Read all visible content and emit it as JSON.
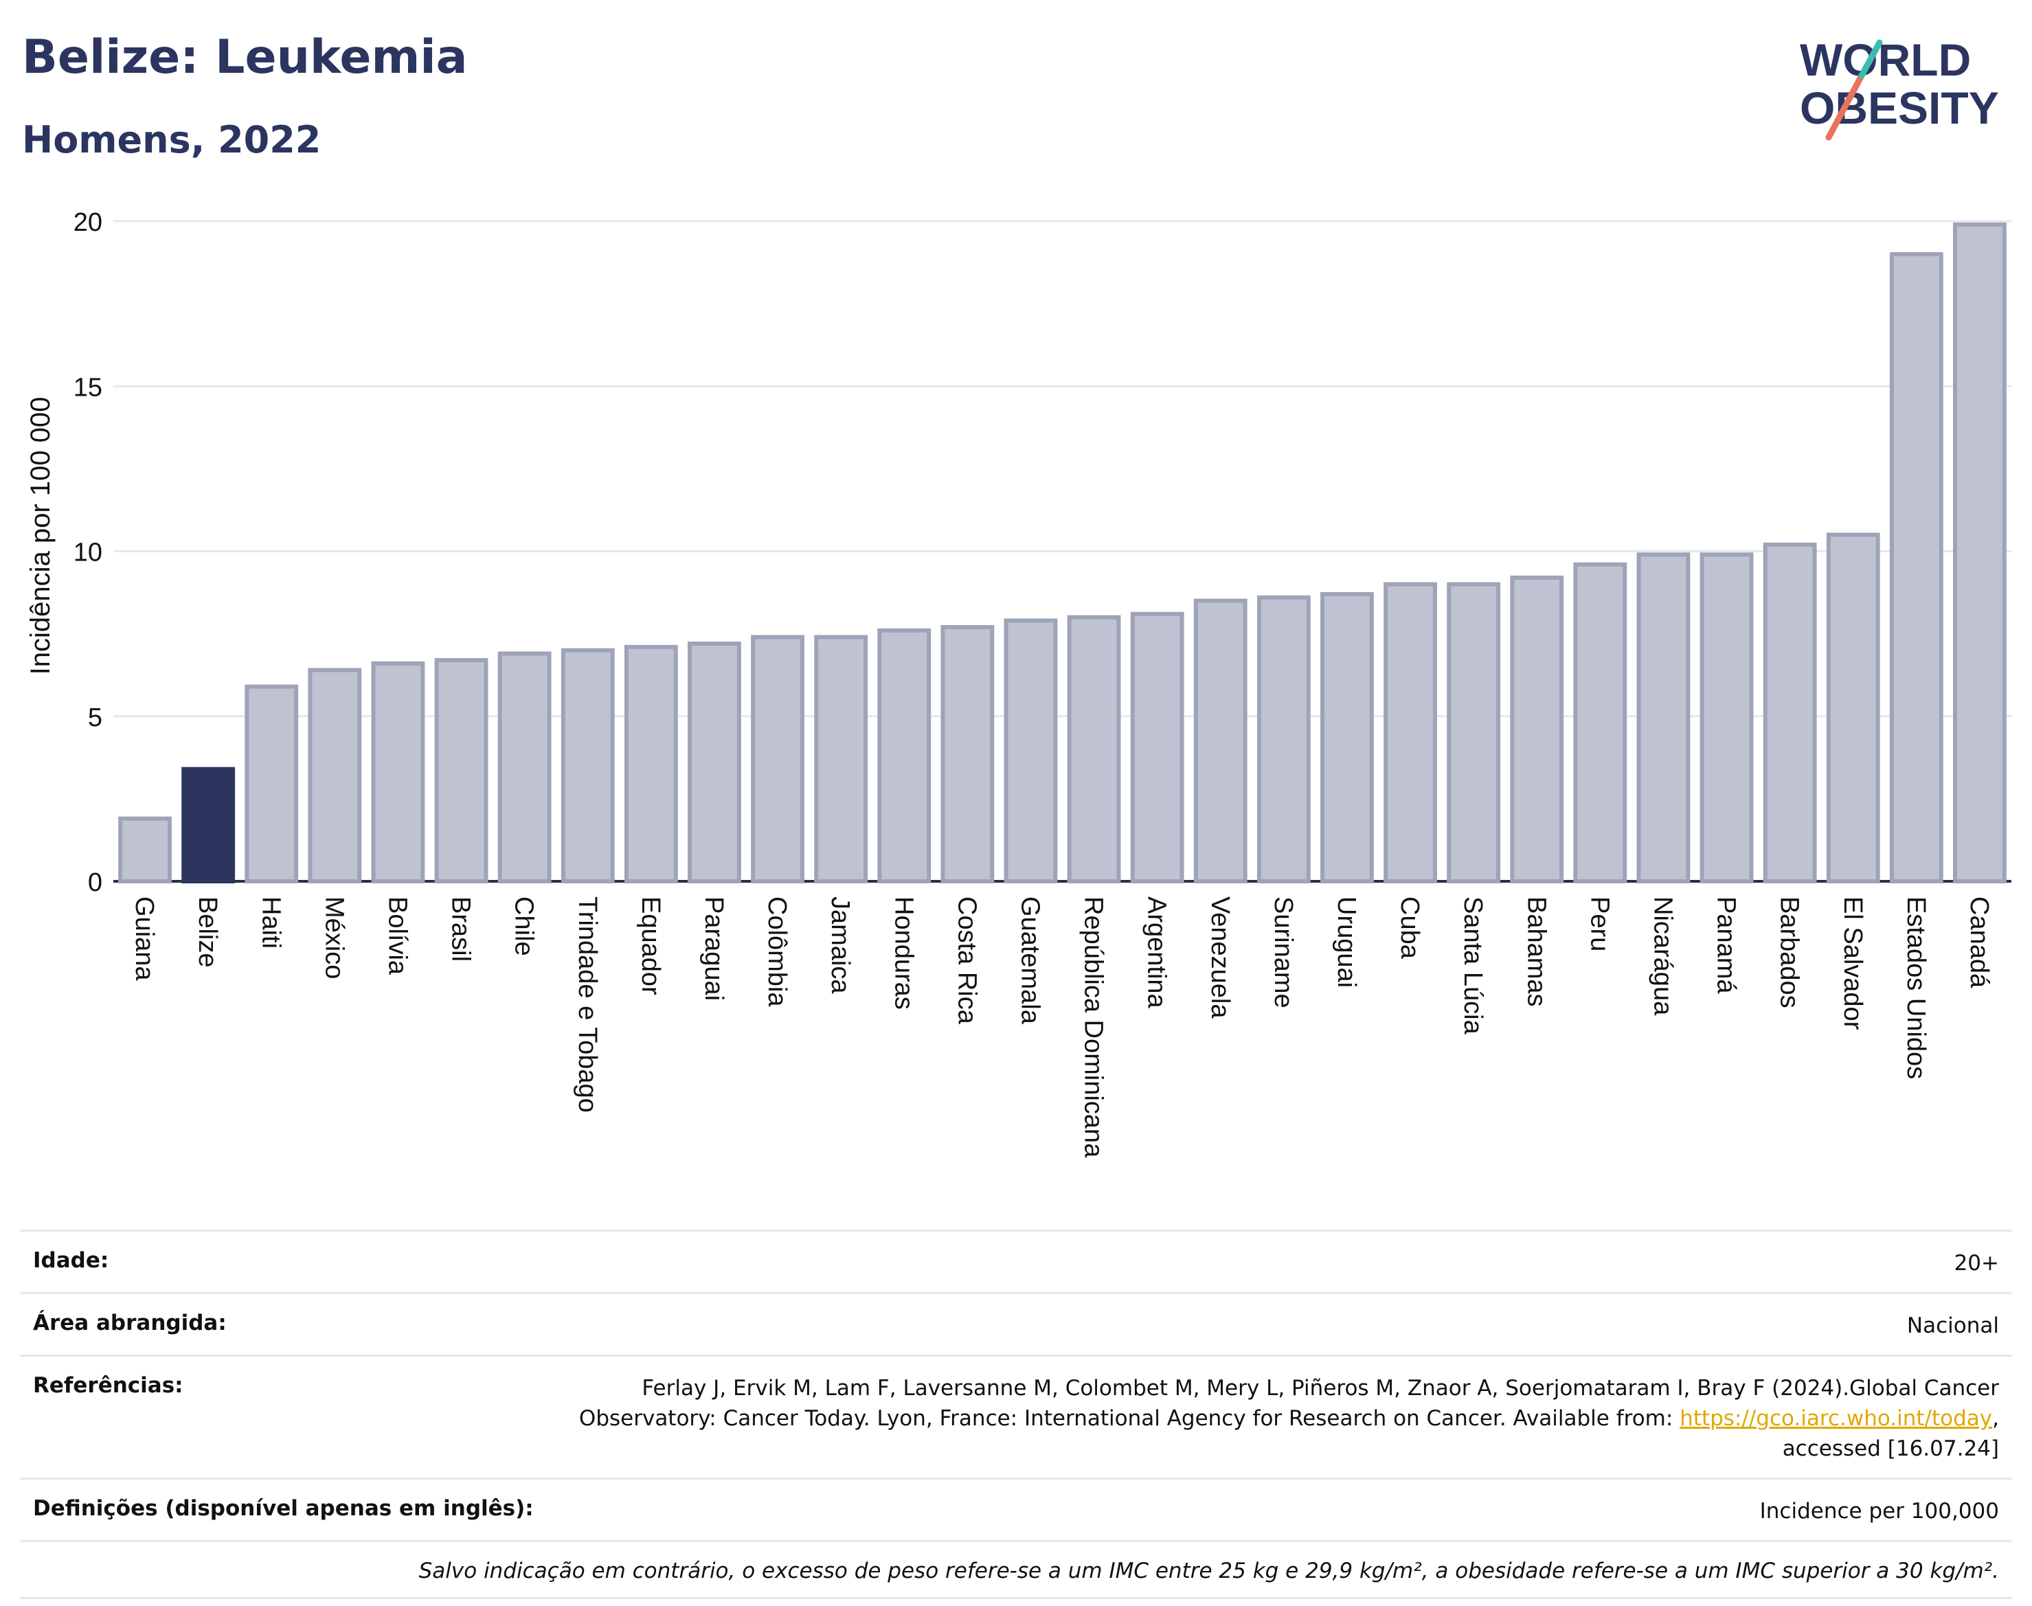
{
  "header": {
    "title": "Belize: Leukemia",
    "subtitle": "Homens, 2022"
  },
  "logo": {
    "line1": "WORLD",
    "line2": "OBESITY"
  },
  "colors": {
    "highlight": "#2b3560",
    "bar": "#bfc3d1",
    "bar_border": "#9ea3b8",
    "title": "#2b3560",
    "link": "#e0a800"
  },
  "chart_data": {
    "type": "bar",
    "ylabel": "Incidência por 100 000",
    "ylim": [
      0,
      20
    ],
    "yticks": [
      0,
      5,
      10,
      15,
      20
    ],
    "grid": true,
    "highlight": "Belize",
    "categories": [
      "Guiana",
      "Belize",
      "Haiti",
      "México",
      "Bolívia",
      "Brasil",
      "Chile",
      "Trindade e Tobago",
      "Equador",
      "Paraguai",
      "Colômbia",
      "Jamaica",
      "Honduras",
      "Costa Rica",
      "Guatemala",
      "República Dominicana",
      "Argentina",
      "Venezuela",
      "Suriname",
      "Uruguai",
      "Cuba",
      "Santa Lúcia",
      "Bahamas",
      "Peru",
      "Nicarágua",
      "Panamá",
      "Barbados",
      "El Salvador",
      "Estados Unidos",
      "Canadá"
    ],
    "values": [
      1.9,
      3.4,
      5.9,
      6.4,
      6.6,
      6.7,
      6.9,
      7.0,
      7.1,
      7.2,
      7.4,
      7.4,
      7.6,
      7.7,
      7.9,
      8.0,
      8.1,
      8.5,
      8.6,
      8.7,
      9.0,
      9.0,
      9.2,
      9.6,
      9.9,
      9.9,
      10.2,
      10.5,
      19.0,
      19.9
    ]
  },
  "meta": {
    "age_label": "Idade:",
    "age_value": "20+",
    "area_label": "Área abrangida:",
    "area_value": "Nacional",
    "refs_label": "Referências:",
    "refs_text_1": "Ferlay J, Ervik M, Lam F, Laversanne M, Colombet M, Mery L, Piñeros M, Znaor A, Soerjomataram I, Bray F (2024).Global Cancer",
    "refs_text_2": "Observatory: Cancer Today. Lyon, France: International Agency for Research on Cancer. Available from: ",
    "refs_link": "https://gco.iarc.who.int/today",
    "refs_text_3": ",",
    "refs_text_4": "accessed [16.07.24]",
    "defs_label": "Definições (disponível apenas em inglês):",
    "defs_value": "Incidence per 100,000",
    "footnote": "Salvo indicação em contrário, o excesso de peso refere-se a um IMC entre 25 kg e 29,9 kg/m², a obesidade refere-se a um IMC superior a 30 kg/m²."
  }
}
